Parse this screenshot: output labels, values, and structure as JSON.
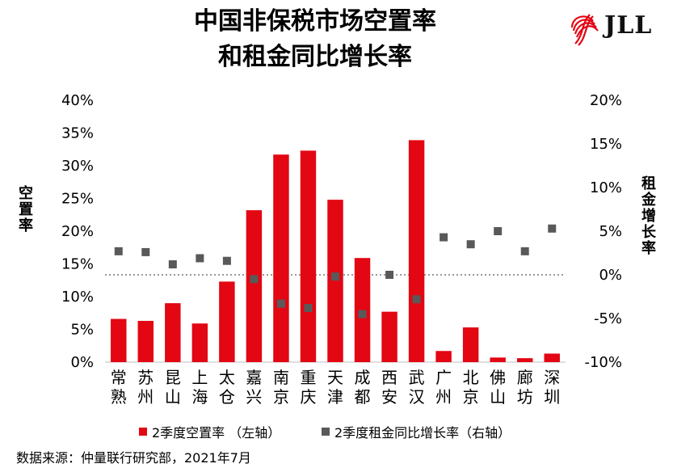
{
  "header": {
    "title_line1": "中国非保税市场空置率",
    "title_line2": "和租金同比增长率",
    "logo_text": "JLL",
    "logo_color": "#e30613"
  },
  "chart_data": {
    "type": "bar",
    "categories": [
      "常熟",
      "苏州",
      "昆山",
      "上海",
      "太仓",
      "嘉兴",
      "南京",
      "重庆",
      "天津",
      "成都",
      "西安",
      "武汉",
      "广州",
      "北京",
      "佛山",
      "廊坊",
      "深圳"
    ],
    "series": [
      {
        "name": "2季度空置率 （左轴）",
        "kind": "bar",
        "axis": "left",
        "color": "#e30613",
        "values": [
          0.066,
          0.063,
          0.09,
          0.059,
          0.123,
          0.232,
          0.317,
          0.323,
          0.248,
          0.159,
          0.077,
          0.339,
          0.017,
          0.053,
          0.007,
          0.006,
          0.013
        ]
      },
      {
        "name": "2季度租金同比增长率（右轴）",
        "kind": "scatter",
        "axis": "right",
        "color": "#595959",
        "values": [
          0.027,
          0.026,
          0.012,
          0.019,
          0.016,
          -0.005,
          -0.033,
          -0.038,
          -0.002,
          -0.045,
          0.0,
          -0.028,
          0.043,
          0.035,
          0.05,
          0.027,
          0.053
        ]
      }
    ],
    "y_left": {
      "min": 0,
      "max": 0.4,
      "ticks": [
        "0%",
        "5%",
        "10%",
        "15%",
        "20%",
        "25%",
        "30%",
        "35%",
        "40%"
      ],
      "label": "空置率"
    },
    "y_right": {
      "min": -0.1,
      "max": 0.2,
      "ticks": [
        "-10%",
        "-5%",
        "0%",
        "5%",
        "10%",
        "15%",
        "20%"
      ],
      "label": "租金增长率"
    },
    "reference_line": {
      "axis": "right",
      "value": 0,
      "style": "dotted"
    },
    "grid": false,
    "legend_position": "bottom"
  },
  "footnote": "数据来源：仲量联行研究部，2021年7月"
}
